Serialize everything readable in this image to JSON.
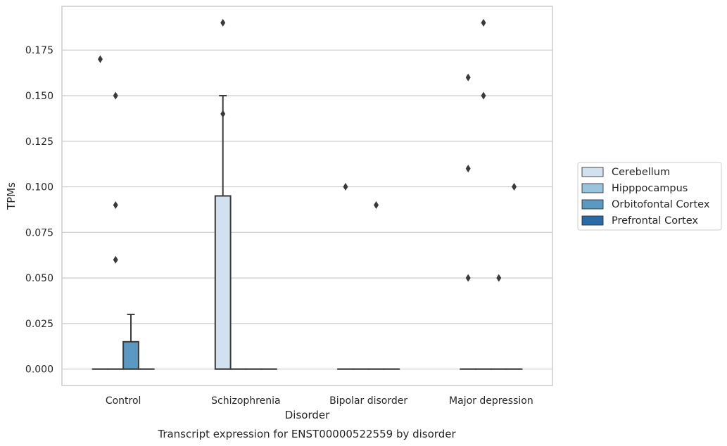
{
  "chart_data": {
    "type": "box",
    "title": "",
    "caption": "Transcript expression for ENST00000522559 by disorder",
    "xlabel": "Disorder",
    "ylabel": "TPMs",
    "ylim": [
      -0.009,
      0.199
    ],
    "yticks": [
      0.0,
      0.025,
      0.05,
      0.075,
      0.1,
      0.125,
      0.15,
      0.175
    ],
    "ytick_labels": [
      "0.000",
      "0.025",
      "0.050",
      "0.075",
      "0.100",
      "0.125",
      "0.150",
      "0.175"
    ],
    "grid": true,
    "legend_position": "right",
    "categories": [
      "Control",
      "Schizophrenia",
      "Bipolar disorder",
      "Major depression"
    ],
    "series": [
      {
        "name": "Cerebellum",
        "color": "#d2e1ef",
        "boxes": [
          {
            "q1": 0,
            "median": 0,
            "q3": 0,
            "whisker_low": 0,
            "whisker_high": 0,
            "outliers": [
              0.17
            ]
          },
          {
            "q1": 0,
            "median": 0,
            "q3": 0.095,
            "whisker_low": 0,
            "whisker_high": 0.15,
            "outliers": [
              0.19,
              0.14
            ]
          },
          {
            "q1": 0,
            "median": 0,
            "q3": 0,
            "whisker_low": 0,
            "whisker_high": 0,
            "outliers": [
              0.1
            ]
          },
          {
            "q1": 0,
            "median": 0,
            "q3": 0,
            "whisker_low": 0,
            "whisker_high": 0,
            "outliers": [
              0.16,
              0.11,
              0.05
            ]
          }
        ]
      },
      {
        "name": "Hipppocampus",
        "color": "#9ac3dd",
        "boxes": [
          {
            "q1": 0,
            "median": 0,
            "q3": 0,
            "whisker_low": 0,
            "whisker_high": 0,
            "outliers": [
              0.15,
              0.09,
              0.06
            ]
          },
          {
            "q1": 0,
            "median": 0,
            "q3": 0,
            "whisker_low": 0,
            "whisker_high": 0,
            "outliers": []
          },
          {
            "q1": 0,
            "median": 0,
            "q3": 0,
            "whisker_low": 0,
            "whisker_high": 0,
            "outliers": []
          },
          {
            "q1": 0,
            "median": 0,
            "q3": 0,
            "whisker_low": 0,
            "whisker_high": 0,
            "outliers": [
              0.19,
              0.15
            ]
          }
        ]
      },
      {
        "name": "Orbitofontal Cortex",
        "color": "#5b98c2",
        "boxes": [
          {
            "q1": 0,
            "median": 0,
            "q3": 0.015,
            "whisker_low": 0,
            "whisker_high": 0.03,
            "outliers": []
          },
          {
            "q1": 0,
            "median": 0,
            "q3": 0,
            "whisker_low": 0,
            "whisker_high": 0,
            "outliers": []
          },
          {
            "q1": 0,
            "median": 0,
            "q3": 0,
            "whisker_low": 0,
            "whisker_high": 0,
            "outliers": [
              0.09
            ]
          },
          {
            "q1": 0,
            "median": 0,
            "q3": 0,
            "whisker_low": 0,
            "whisker_high": 0,
            "outliers": [
              0.05
            ]
          }
        ]
      },
      {
        "name": "Prefrontal Cortex",
        "color": "#2c6aa5",
        "boxes": [
          {
            "q1": 0,
            "median": 0,
            "q3": 0,
            "whisker_low": 0,
            "whisker_high": 0,
            "outliers": []
          },
          {
            "q1": 0,
            "median": 0,
            "q3": 0,
            "whisker_low": 0,
            "whisker_high": 0,
            "outliers": []
          },
          {
            "q1": 0,
            "median": 0,
            "q3": 0,
            "whisker_low": 0,
            "whisker_high": 0,
            "outliers": []
          },
          {
            "q1": 0,
            "median": 0,
            "q3": 0,
            "whisker_low": 0,
            "whisker_high": 0,
            "outliers": [
              0.1
            ]
          }
        ]
      }
    ]
  }
}
